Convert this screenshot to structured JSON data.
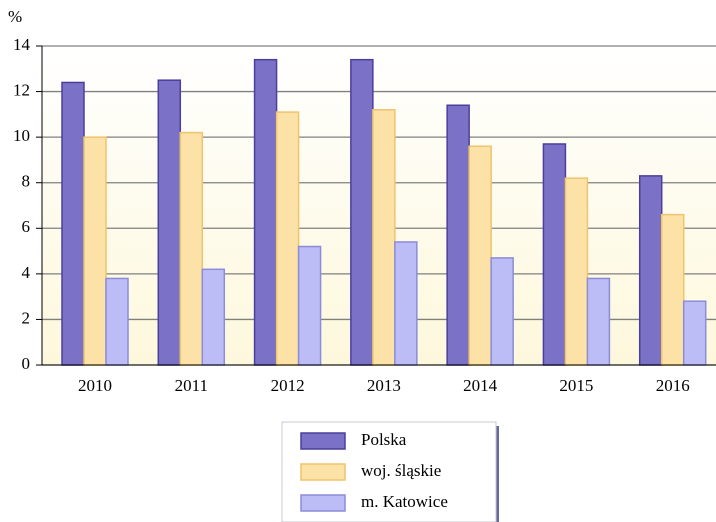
{
  "chart_data": {
    "type": "bar",
    "ylabel": "%",
    "categories": [
      "2010",
      "2011",
      "2012",
      "2013",
      "2014",
      "2015",
      "2016"
    ],
    "series": [
      {
        "name": "Polska",
        "color": "#7b72c8",
        "values": [
          12.4,
          12.5,
          13.4,
          13.4,
          11.4,
          9.7,
          8.3
        ]
      },
      {
        "name": "woj. śląskie",
        "color": "#fce2a6",
        "values": [
          10.0,
          10.2,
          11.1,
          11.2,
          9.6,
          8.2,
          6.6
        ]
      },
      {
        "name": "m. Katowice",
        "color": "#bcbcf6",
        "values": [
          3.8,
          4.2,
          5.2,
          5.4,
          4.7,
          3.8,
          2.8
        ]
      }
    ],
    "ylim": [
      0,
      14
    ],
    "yticks": [
      0,
      2,
      4,
      6,
      8,
      10,
      12,
      14
    ],
    "grid": true,
    "legend": "bottom"
  }
}
